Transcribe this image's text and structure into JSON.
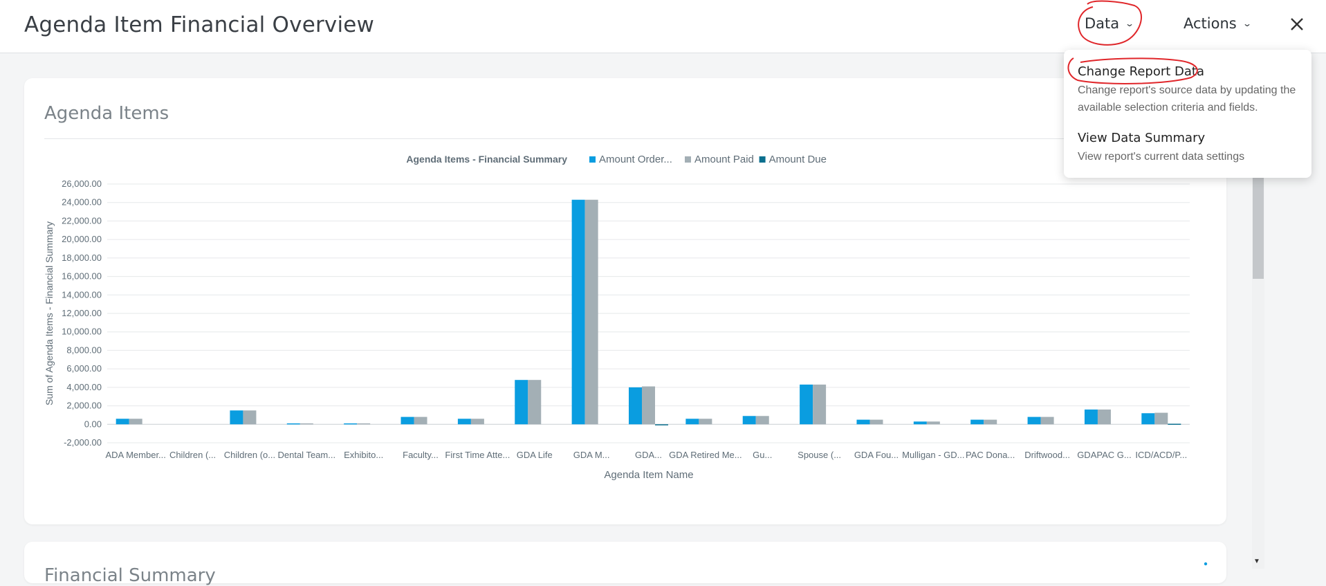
{
  "header": {
    "title": "Agenda Item Financial Overview",
    "data_menu_label": "Data",
    "actions_menu_label": "Actions",
    "close_icon": "close-icon"
  },
  "dropdown": {
    "items": [
      {
        "title": "Change Report Data",
        "description": "Change report's source data by updating the available selection criteria and fields."
      },
      {
        "title": "View Data Summary",
        "description": "View report's current data settings"
      }
    ]
  },
  "card": {
    "title": "Agenda Items"
  },
  "colors": {
    "amount_ordered": "#0a9de0",
    "amount_paid": "#a3afb5",
    "amount_due": "#0b6f8e",
    "annotation": "#e0262a"
  },
  "chart_data": {
    "type": "bar",
    "title": "Agenda Items - Financial Summary",
    "xlabel": "Agenda Item Name",
    "ylabel": "Sum of Agenda Items - Financial Summary",
    "ylim": [
      -2000,
      26000
    ],
    "yticks": [
      "-2,000.00",
      "0.00",
      "2,000.00",
      "4,000.00",
      "6,000.00",
      "8,000.00",
      "10,000.00",
      "12,000.00",
      "14,000.00",
      "16,000.00",
      "18,000.00",
      "20,000.00",
      "22,000.00",
      "24,000.00",
      "26,000.00"
    ],
    "grid": true,
    "legend_position": "top",
    "categories": [
      "ADA Member...",
      "Children (...",
      "Children (o...",
      "Dental Team...",
      "Exhibito...",
      "Faculty...",
      "First Time Atte...",
      "GDA Life",
      "GDA M...",
      "GDA...",
      "GDA Retired Me...",
      "Gu...",
      "Spouse (...",
      "GDA Fou...",
      "Mulligan - GD...",
      "PAC Dona...",
      "Driftwood...",
      "GDAPAC G...",
      "ICD/ACD/P..."
    ],
    "series": [
      {
        "name": "Amount Order...",
        "color": "#0a9de0",
        "values": [
          600,
          0,
          1500,
          100,
          100,
          800,
          600,
          4800,
          24300,
          4000,
          600,
          900,
          4300,
          500,
          300,
          500,
          800,
          1600,
          1200
        ]
      },
      {
        "name": "Amount Paid",
        "color": "#a3afb5",
        "values": [
          600,
          0,
          1500,
          100,
          100,
          800,
          600,
          4800,
          24300,
          4100,
          600,
          900,
          4300,
          500,
          300,
          500,
          800,
          1600,
          1250
        ]
      },
      {
        "name": "Amount Due",
        "color": "#0b6f8e",
        "values": [
          0,
          0,
          0,
          0,
          0,
          0,
          0,
          0,
          0,
          -100,
          0,
          0,
          0,
          0,
          0,
          0,
          0,
          0,
          60
        ]
      }
    ]
  },
  "bottom_card": {
    "title": "Financial Summary"
  }
}
